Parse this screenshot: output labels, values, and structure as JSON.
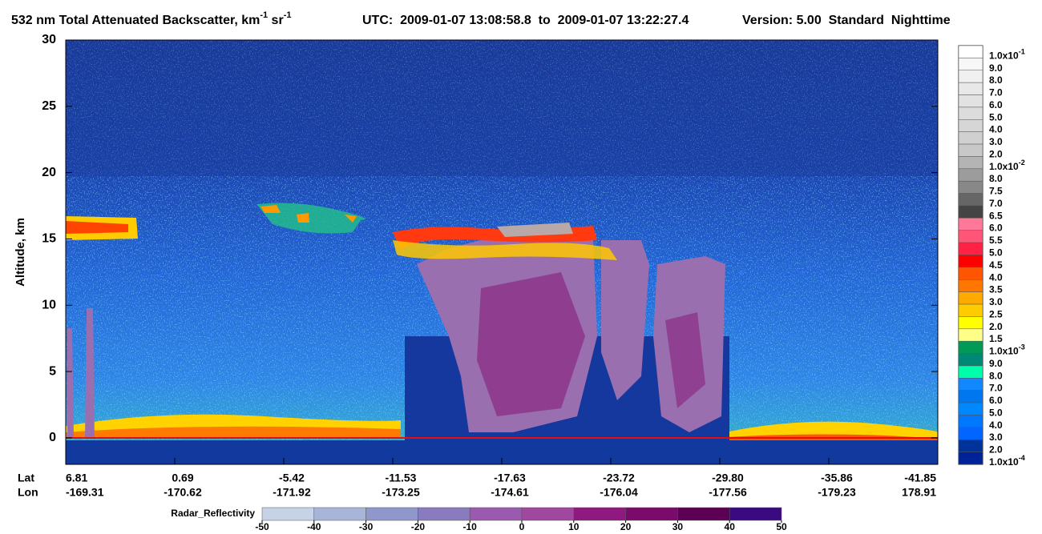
{
  "chart_data": {
    "type": "heatmap",
    "title": {
      "text": "532 nm Total Attenuated Backscatter, km",
      "exp1": "-1",
      "unit": " sr",
      "exp2": "-1",
      "time_range": "UTC:  2009-01-07 13:08:58.8  to  2009-01-07 13:22:27.4",
      "version": "Version: 5.00  Standard  Nighttime"
    },
    "y_label": "Altitude, km",
    "ylim": [
      -2,
      30
    ],
    "yticks": [
      0,
      5,
      10,
      15,
      20,
      25,
      30
    ],
    "x_row_labels": [
      "Lat",
      "Lon"
    ],
    "lat": [
      "6.81",
      "0.69",
      "-5.42",
      "-11.53",
      "-17.63",
      "-23.72",
      "-29.80",
      "-35.86",
      "-41.85"
    ],
    "lon": [
      "-169.31",
      "-170.62",
      "-171.92",
      "-173.25",
      "-174.61",
      "-176.04",
      "-177.56",
      "-179.23",
      "178.91"
    ],
    "colorbar": [
      {
        "label": "1.0x10",
        "exp": "-1",
        "color": "#ffffff"
      },
      {
        "label": "9.0",
        "color": "#f7f7f7"
      },
      {
        "label": "8.0",
        "color": "#f0f0f0"
      },
      {
        "label": "7.0",
        "color": "#e8e8e8"
      },
      {
        "label": "6.0",
        "color": "#e2e2e2"
      },
      {
        "label": "5.0",
        "color": "#dcdcdc"
      },
      {
        "label": "4.0",
        "color": "#d6d6d6"
      },
      {
        "label": "3.0",
        "color": "#d0d0d0"
      },
      {
        "label": "2.0",
        "color": "#c8c8c8"
      },
      {
        "label": "1.0x10",
        "exp": "-2",
        "color": "#b4b4b4"
      },
      {
        "label": "8.0",
        "color": "#9c9c9c"
      },
      {
        "label": "7.5",
        "color": "#888888"
      },
      {
        "label": "7.0",
        "color": "#666666"
      },
      {
        "label": "6.5",
        "color": "#444444"
      },
      {
        "label": "6.0",
        "color": "#ff7799"
      },
      {
        "label": "5.5",
        "color": "#ff5577"
      },
      {
        "label": "5.0",
        "color": "#ff2244"
      },
      {
        "label": "4.5",
        "color": "#ff0000"
      },
      {
        "label": "4.0",
        "color": "#ff5500"
      },
      {
        "label": "3.5",
        "color": "#ff7700"
      },
      {
        "label": "3.0",
        "color": "#ffaa00"
      },
      {
        "label": "2.5",
        "color": "#ffcc00"
      },
      {
        "label": "2.0",
        "color": "#ffff00"
      },
      {
        "label": "1.5",
        "color": "#ffff88"
      },
      {
        "label": "1.0x10",
        "exp": "-3",
        "color": "#009955"
      },
      {
        "label": "9.0",
        "color": "#008877"
      },
      {
        "label": "8.0",
        "color": "#00ffaa"
      },
      {
        "label": "7.0",
        "color": "#1188ff"
      },
      {
        "label": "6.0",
        "color": "#0077ee"
      },
      {
        "label": "5.0",
        "color": "#0088ff"
      },
      {
        "label": "4.0",
        "color": "#0077ff"
      },
      {
        "label": "3.0",
        "color": "#0066ff"
      },
      {
        "label": "2.0",
        "color": "#003399"
      },
      {
        "label": "1.0x10",
        "exp": "-4",
        "color": "#002299"
      }
    ],
    "radar_colorbar": {
      "label": "Radar_Reflectivity",
      "ticks": [
        -50,
        -40,
        -30,
        -20,
        -10,
        0,
        10,
        20,
        30,
        40,
        50
      ],
      "colors": [
        "#c6d3e6",
        "#a7b5d9",
        "#8f97cb",
        "#8a7bbf",
        "#9a5aaf",
        "#a0489e",
        "#8e1a7f",
        "#7a0b6b",
        "#5c0053",
        "#3c0a80"
      ]
    }
  }
}
